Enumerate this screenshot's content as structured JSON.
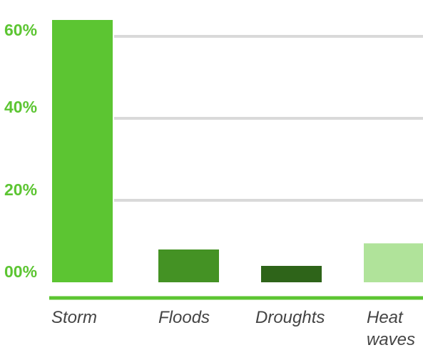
{
  "chart_data": {
    "type": "bar",
    "title": "",
    "xlabel": "",
    "ylabel": "",
    "categories": [
      [
        "Storm"
      ],
      [
        "Floods"
      ],
      [
        "Droughts"
      ],
      [
        "Heat",
        "waves"
      ]
    ],
    "values": [
      64,
      8,
      4,
      9.5
    ],
    "value_unit": "%",
    "ylim": [
      0,
      60
    ],
    "yticks": [
      {
        "value": 0,
        "label": "00%"
      },
      {
        "value": 20,
        "label": "20%"
      },
      {
        "value": 40,
        "label": "40%"
      },
      {
        "value": 60,
        "label": "60%"
      }
    ],
    "grid": true,
    "legend": "none",
    "colors": {
      "bars": [
        "#5cc532",
        "#449224",
        "#2e6419",
        "#b0e39a"
      ],
      "axis_line": "#5cc532",
      "gridline": "#d9d9d9",
      "tick_label": "#5cc532",
      "category_label": "#444444"
    }
  }
}
